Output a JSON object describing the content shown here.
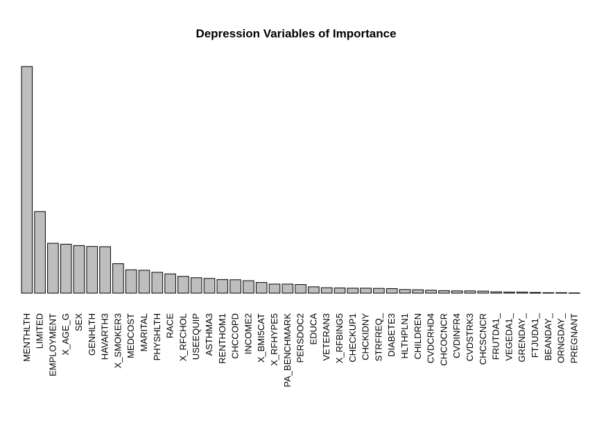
{
  "chart_data": {
    "type": "bar",
    "title": "Depression Variables of Importance",
    "xlabel": "",
    "ylabel": "",
    "ylim": [
      0,
      100
    ],
    "grid": false,
    "legend": "none",
    "colors": {
      "bar_fill": "#bebebe",
      "bar_stroke": "#000000"
    },
    "categories": [
      "MENTHLTH",
      "LIMITED",
      "EMPLOYMENT",
      "X_AGE_G",
      "SEX",
      "GENHLTH",
      "HAVARTH3",
      "X_SMOKER3",
      "MEDCOST",
      "MARITAL",
      "PHYSHLTH",
      "RACE",
      "X_RFCHOL",
      "USEEQUIP",
      "ASTHMA3",
      "RENTHOM1",
      "CHCCOPD",
      "INCOME2",
      "X_BMI5CAT",
      "X_RFHYPE5",
      "PA_BENCHMARK",
      "PERSDOC2",
      "EDUCA",
      "VETERAN3",
      "X_RFBING5",
      "CHECKUP1",
      "CHCKIDNY",
      "STRFREQ_",
      "DIABETE3",
      "HLTHPLN1",
      "CHILDREN",
      "CVDCRHD4",
      "CHCOCNCR",
      "CVDINFR4",
      "CVDSTRK3",
      "CHCSCNCR",
      "FRUTDA1_",
      "VEGEDA1_",
      "GRENDAY_",
      "FTJUDA1_",
      "BEANDAY_",
      "ORNGDAY_",
      "PREGNANT"
    ],
    "values": [
      100,
      36,
      22,
      21.6,
      21,
      20.6,
      20.5,
      13,
      10.3,
      10.1,
      9.2,
      8.5,
      7.4,
      6.8,
      6.5,
      6,
      5.9,
      5.5,
      4.7,
      4,
      4,
      3.8,
      2.8,
      2.4,
      2.3,
      2.2,
      2.2,
      2.1,
      2,
      1.6,
      1.5,
      1.3,
      1.1,
      1,
      1,
      0.9,
      0.6,
      0.5,
      0.5,
      0.3,
      0.2,
      0.2,
      0.1
    ]
  }
}
